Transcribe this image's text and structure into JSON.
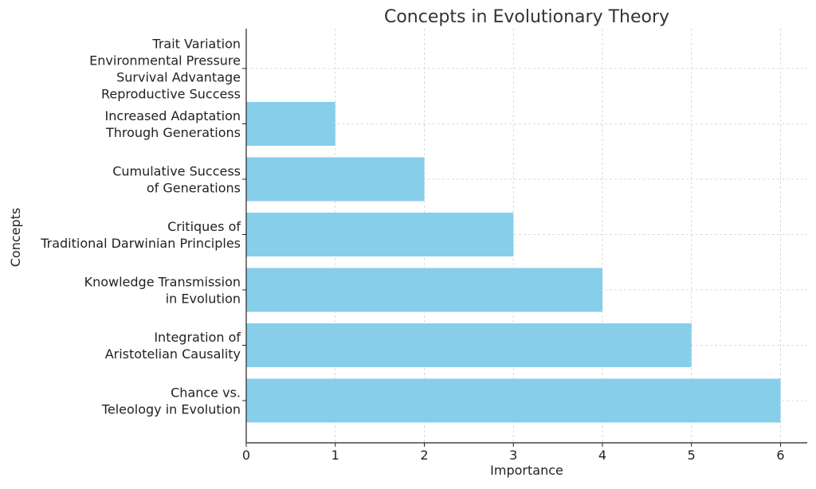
{
  "chart_data": {
    "type": "bar",
    "orientation": "horizontal",
    "title": "Concepts in Evolutionary Theory",
    "xlabel": "Importance",
    "ylabel": "Concepts",
    "xlim": [
      0,
      6.3
    ],
    "xticks": [
      "0",
      "1",
      "2",
      "3",
      "4",
      "5",
      "6"
    ],
    "grid": true,
    "bar_color": "#87CEEB",
    "categories": [
      [
        "Chance vs.",
        "Teleology in Evolution"
      ],
      [
        "Integration of",
        "Aristotelian Causality"
      ],
      [
        "Knowledge Transmission",
        "in Evolution"
      ],
      [
        "Critiques of",
        "Traditional Darwinian Principles"
      ],
      [
        "Cumulative Success",
        "of Generations"
      ],
      [
        "Increased Adaptation",
        "Through Generations"
      ],
      [
        "Trait Variation",
        "Environmental Pressure",
        "Survival Advantage",
        "Reproductive Success"
      ]
    ],
    "values": [
      6,
      5,
      4,
      3,
      2,
      1,
      0
    ]
  }
}
